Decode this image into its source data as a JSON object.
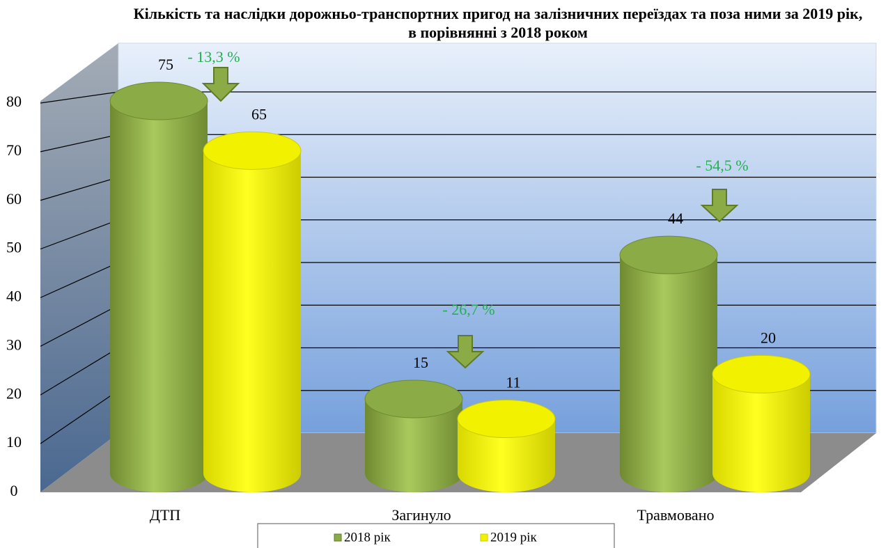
{
  "chart_data": {
    "type": "bar3d",
    "title": "Кількість та наслідки дорожньо-транспортних пригод на залізничних переїздах та поза ними за 2019 рік, в порівнянні з 2018 роком",
    "categories": [
      "ДТП",
      "Загинуло",
      "Травмовано"
    ],
    "series": [
      {
        "name": "2018 рік",
        "color": "#8aab45",
        "values": [
          75,
          15,
          44
        ]
      },
      {
        "name": "2019 рік",
        "color": "#f2f200",
        "values": [
          65,
          11,
          20
        ]
      }
    ],
    "annotations": [
      "- 13,3 %",
      "- 26,7 %",
      "- 54,5 %"
    ],
    "ylim": [
      0,
      80
    ],
    "yticks": [
      0,
      10,
      20,
      30,
      40,
      50,
      60,
      70,
      80
    ],
    "grid": true,
    "legend": "bottom"
  }
}
